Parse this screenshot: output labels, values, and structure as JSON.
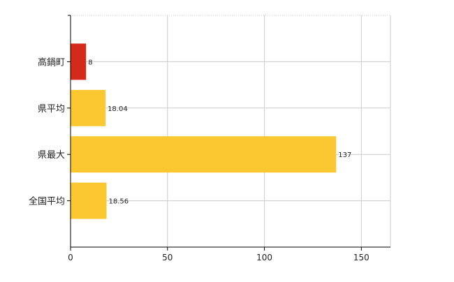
{
  "chart_data": {
    "type": "bar",
    "orientation": "horizontal",
    "categories": [
      "高鍋町",
      "県平均",
      "県最大",
      "全国平均"
    ],
    "values": [
      8,
      18.04,
      137,
      18.56
    ],
    "data_labels": [
      "8",
      "18.04",
      "137",
      "18.56"
    ],
    "bar_colors": [
      "#d42a1c",
      "#fcc832",
      "#fcc832",
      "#fcc832"
    ],
    "xlim": [
      0,
      165
    ],
    "xticks": [
      0,
      50,
      100,
      150
    ],
    "xtick_labels": [
      "0",
      "50",
      "100",
      "150"
    ],
    "grid": true,
    "title": "",
    "xlabel": "",
    "ylabel": ""
  }
}
